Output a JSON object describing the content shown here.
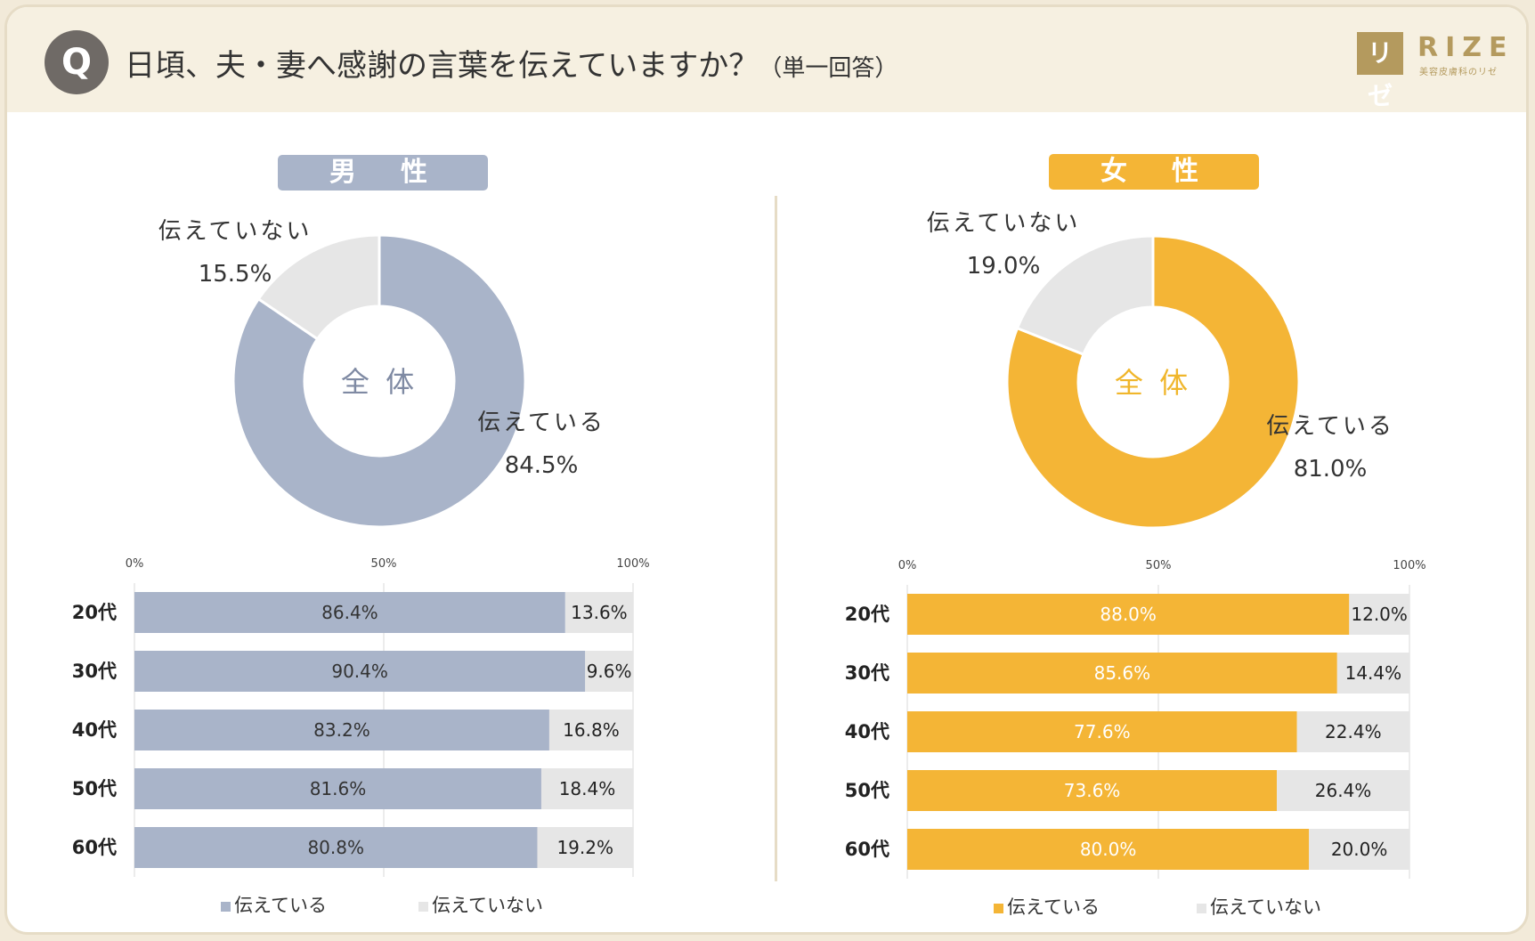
{
  "header": {
    "q_badge": "Q",
    "question": "日頃、夫・妻へ感謝の言葉を伝えていますか？",
    "question_note": "（単一回答）",
    "logo_mark": "リゼ",
    "logo_name": "RIZE",
    "logo_tagline": "美容皮膚科のリゼ"
  },
  "colors": {
    "male": "#a9b4c9",
    "female": "#f4b536",
    "no": "#e6e6e6",
    "male_center": "#7f8aa3",
    "female_center": "#f0b62b"
  },
  "chart_data": [
    {
      "type": "pie",
      "panel": "male",
      "title": "男　性",
      "center_label": "全 体",
      "labels": [
        "伝えている",
        "伝えていない"
      ],
      "values": [
        84.5,
        15.5
      ],
      "value_labels": [
        "84.5%",
        "15.5%"
      ]
    },
    {
      "type": "bar",
      "panel": "male",
      "orientation": "horizontal",
      "stacked": true,
      "categories": [
        "20代",
        "30代",
        "40代",
        "50代",
        "60代"
      ],
      "x_ticks": [
        "0%",
        "50%",
        "100%"
      ],
      "xlim": [
        0,
        100
      ],
      "legend": [
        "伝えている",
        "伝えていない"
      ],
      "legend_position": "bottom",
      "series": [
        {
          "name": "伝えている",
          "values": [
            86.4,
            90.4,
            83.2,
            81.6,
            80.8
          ],
          "labels": [
            "86.4%",
            "90.4%",
            "83.2%",
            "81.6%",
            "80.8%"
          ]
        },
        {
          "name": "伝えていない",
          "values": [
            13.6,
            9.6,
            16.8,
            18.4,
            19.2
          ],
          "labels": [
            "13.6%",
            "9.6%",
            "16.8%",
            "18.4%",
            "19.2%"
          ]
        }
      ]
    },
    {
      "type": "pie",
      "panel": "female",
      "title": "女　性",
      "center_label": "全 体",
      "labels": [
        "伝えている",
        "伝えていない"
      ],
      "values": [
        81.0,
        19.0
      ],
      "value_labels": [
        "81.0%",
        "19.0%"
      ]
    },
    {
      "type": "bar",
      "panel": "female",
      "orientation": "horizontal",
      "stacked": true,
      "categories": [
        "20代",
        "30代",
        "40代",
        "50代",
        "60代"
      ],
      "x_ticks": [
        "0%",
        "50%",
        "100%"
      ],
      "xlim": [
        0,
        100
      ],
      "legend": [
        "伝えている",
        "伝えていない"
      ],
      "legend_position": "bottom",
      "series": [
        {
          "name": "伝えている",
          "values": [
            88.0,
            85.6,
            77.6,
            73.6,
            80.0
          ],
          "labels": [
            "88.0%",
            "85.6%",
            "77.6%",
            "73.6%",
            "80.0%"
          ]
        },
        {
          "name": "伝えていない",
          "values": [
            12.0,
            14.4,
            22.4,
            26.4,
            20.0
          ],
          "labels": [
            "12.0%",
            "14.4%",
            "22.4%",
            "26.4%",
            "20.0%"
          ]
        }
      ]
    }
  ]
}
